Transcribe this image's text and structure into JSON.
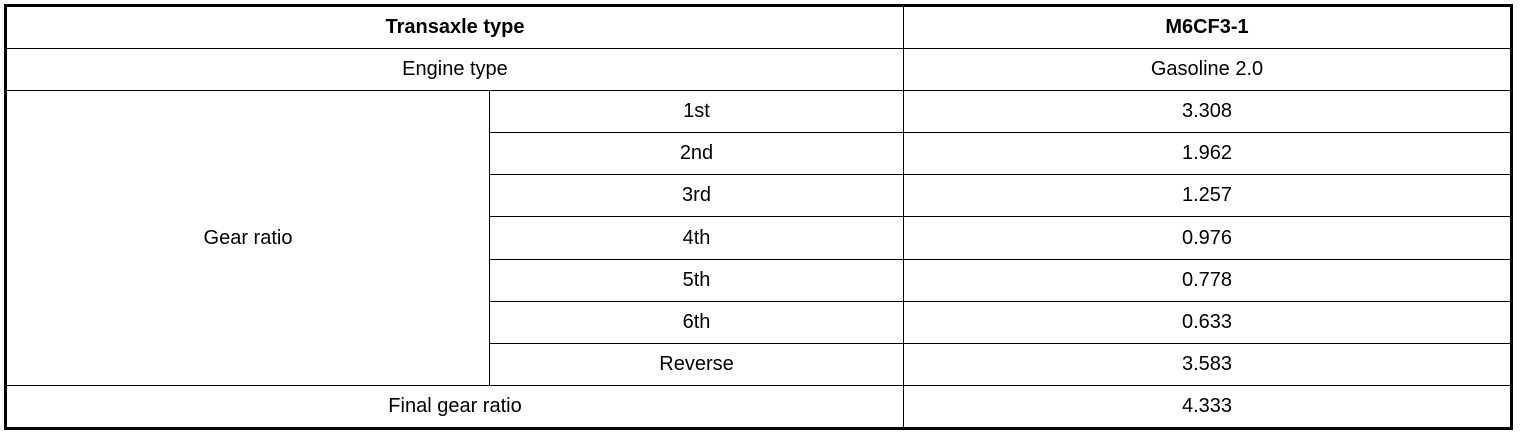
{
  "table": {
    "header": {
      "label": "Transaxle type",
      "value": "M6CF3-1"
    },
    "engine": {
      "label": "Engine type",
      "value": "Gasoline 2.0"
    },
    "gear_ratio": {
      "label": "Gear ratio",
      "rows": [
        {
          "gear": "1st",
          "value": "3.308"
        },
        {
          "gear": "2nd",
          "value": "1.962"
        },
        {
          "gear": "3rd",
          "value": "1.257"
        },
        {
          "gear": "4th",
          "value": "0.976"
        },
        {
          "gear": "5th",
          "value": "0.778"
        },
        {
          "gear": "6th",
          "value": "0.633"
        },
        {
          "gear": "Reverse",
          "value": "3.583"
        }
      ]
    },
    "final": {
      "label": "Final gear ratio",
      "value": "4.333"
    }
  }
}
